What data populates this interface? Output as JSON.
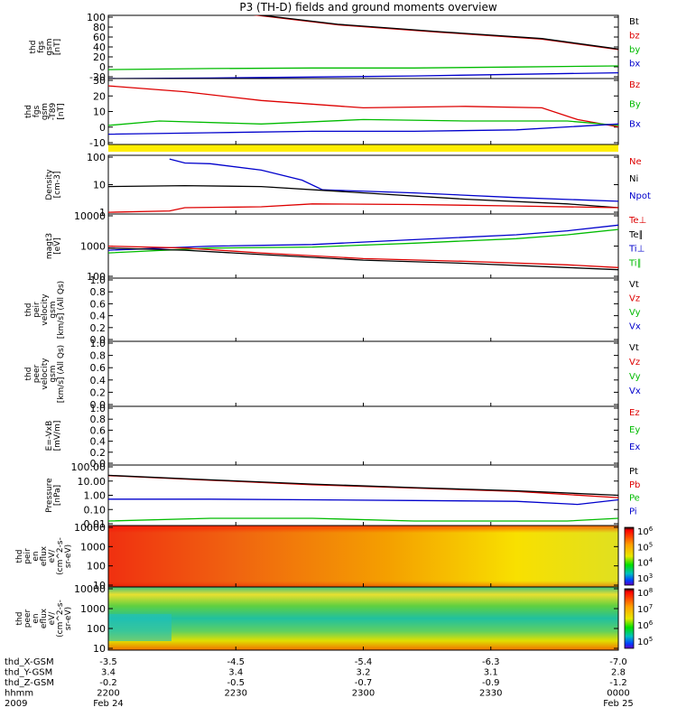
{
  "chart_data": {
    "type": "multi-panel",
    "title": "P3 (TH-D) fields and ground moments overview",
    "time_axis": {
      "labels": [
        "thd_X-GSM",
        "thd_Y-GSM",
        "thd_Z-GSM",
        "hhmm",
        "2009"
      ],
      "ticks": [
        {
          "x": "-3.5",
          "y": "3.4",
          "z": "-0.2",
          "hhmm": "2200",
          "date": "Feb 24"
        },
        {
          "x": "-4.5",
          "y": "3.4",
          "z": "-0.5",
          "hhmm": "2230",
          "date": ""
        },
        {
          "x": "-5.4",
          "y": "3.2",
          "z": "-0.7",
          "hhmm": "2300",
          "date": ""
        },
        {
          "x": "-6.3",
          "y": "3.1",
          "z": "-0.9",
          "hhmm": "2330",
          "date": ""
        },
        {
          "x": "-7.0",
          "y": "2.8",
          "z": "-1.2",
          "hhmm": "0000",
          "date": "Feb 25"
        }
      ]
    },
    "panels": [
      {
        "ylabel": [
          "thd",
          "fgs",
          "gsm",
          "[nT]"
        ],
        "ylim": [
          -20,
          100
        ],
        "yticks": [
          "100",
          "80",
          "60",
          "40",
          "20",
          "0",
          "-20"
        ],
        "legend": [
          {
            "label": "Bt",
            "color": "#000000"
          },
          {
            "label": "bz",
            "color": "#dd0000"
          },
          {
            "label": "by",
            "color": "#00bb00"
          },
          {
            "label": "bx",
            "color": "#0000cc"
          }
        ],
        "series": [
          {
            "name": "bz",
            "color": "#dd0000",
            "x": [
              0.05,
              0.25,
              0.45,
              0.65,
              0.85,
              1.0
            ],
            "y": [
              190,
              105,
              82,
              68,
              55,
              35
            ]
          },
          {
            "name": "Bt",
            "color": "#000000",
            "x": [
              0.05,
              0.25,
              0.45,
              0.65,
              0.85,
              1.0
            ],
            "y": [
              191,
              106,
              83,
              69,
              56,
              36
            ]
          },
          {
            "name": "by",
            "color": "#00bb00",
            "x": [
              0,
              0.2,
              0.4,
              0.6,
              0.8,
              1.0
            ],
            "y": [
              -3,
              -1,
              0,
              0,
              2,
              4
            ]
          },
          {
            "name": "bx",
            "color": "#0000cc",
            "x": [
              0,
              0.2,
              0.4,
              0.6,
              0.8,
              1.0
            ],
            "y": [
              -20,
              -19,
              -17,
              -15,
              -12,
              -9
            ]
          }
        ]
      },
      {
        "ylabel": [
          "thd",
          "fgs",
          "gsm",
          "-T89",
          "[nT]"
        ],
        "ylim": [
          -15,
          30
        ],
        "yticks": [
          "30",
          "20",
          "10",
          "0",
          "-10"
        ],
        "legend": [
          {
            "label": "Bz",
            "color": "#dd0000"
          },
          {
            "label": "By",
            "color": "#00bb00"
          },
          {
            "label": "Bx",
            "color": "#0000cc"
          }
        ],
        "series": [
          {
            "name": "Bz",
            "color": "#dd0000",
            "x": [
              0,
              0.15,
              0.3,
              0.5,
              0.7,
              0.85,
              0.92,
              1.0
            ],
            "y": [
              25,
              21,
              15,
              10,
              11,
              10,
              2,
              -3
            ]
          },
          {
            "name": "By",
            "color": "#00bb00",
            "x": [
              0,
              0.1,
              0.3,
              0.5,
              0.7,
              0.9,
              1.0
            ],
            "y": [
              -2,
              1,
              -1,
              2,
              1,
              1,
              -2
            ]
          },
          {
            "name": "Bx",
            "color": "#0000cc",
            "x": [
              0,
              0.2,
              0.4,
              0.6,
              0.8,
              1.0
            ],
            "y": [
              -8,
              -7,
              -6,
              -6,
              -5,
              -1
            ]
          }
        ]
      },
      {
        "ylabel": [
          "Density",
          "[cm-3]"
        ],
        "scale": "log",
        "ylim": [
          0.5,
          300
        ],
        "yticks": [
          "100",
          "10",
          "1"
        ],
        "legend": [
          {
            "label": "Ne",
            "color": "#dd0000"
          },
          {
            "label": "Ni",
            "color": "#000000"
          },
          {
            "label": "Npot",
            "color": "#0000cc"
          }
        ],
        "series": [
          {
            "name": "Npot",
            "color": "#0000cc",
            "x": [
              0.12,
              0.15,
              0.2,
              0.3,
              0.38,
              0.42,
              0.6,
              0.8,
              1.0
            ],
            "y": [
              200,
              130,
              120,
              60,
              20,
              7,
              5,
              3,
              2
            ]
          },
          {
            "name": "Ni",
            "color": "#000000",
            "x": [
              0,
              0.15,
              0.3,
              0.5,
              0.7,
              0.9,
              1.0
            ],
            "y": [
              10,
              11,
              10,
              5,
              2.5,
              1.5,
              1
            ]
          },
          {
            "name": "Ne",
            "color": "#dd0000",
            "x": [
              0,
              0.12,
              0.15,
              0.3,
              0.4,
              0.6,
              0.8,
              1.0
            ],
            "y": [
              0.6,
              0.7,
              1,
              1.1,
              1.5,
              1.4,
              1.2,
              1
            ]
          }
        ]
      },
      {
        "ylabel": [
          "magt3",
          "[eV]"
        ],
        "scale": "log",
        "ylim": [
          50,
          10000
        ],
        "yticks": [
          "10000",
          "1000",
          "100"
        ],
        "legend": [
          {
            "label": "Te⊥",
            "color": "#dd0000"
          },
          {
            "label": "Te∥",
            "color": "#000000"
          },
          {
            "label": "Ti⊥",
            "color": "#0000cc"
          },
          {
            "label": "Ti∥",
            "color": "#00bb00"
          }
        ],
        "series": [
          {
            "name": "Ti⊥",
            "color": "#0000cc",
            "x": [
              0,
              0.2,
              0.4,
              0.6,
              0.8,
              0.9,
              1.0
            ],
            "y": [
              500,
              700,
              800,
              1200,
              1800,
              2500,
              4000
            ]
          },
          {
            "name": "Ti∥",
            "color": "#00bb00",
            "x": [
              0,
              0.2,
              0.4,
              0.6,
              0.8,
              0.9,
              1.0
            ],
            "y": [
              400,
              600,
              650,
              900,
              1300,
              1800,
              2800
            ]
          },
          {
            "name": "Te⊥",
            "color": "#dd0000",
            "x": [
              0,
              0.15,
              0.3,
              0.5,
              0.7,
              0.9,
              1.0
            ],
            "y": [
              700,
              600,
              400,
              250,
              200,
              150,
              120
            ]
          },
          {
            "name": "Te∥",
            "color": "#000000",
            "x": [
              0,
              0.15,
              0.3,
              0.5,
              0.7,
              0.9,
              1.0
            ],
            "y": [
              600,
              500,
              350,
              220,
              170,
              120,
              100
            ]
          }
        ]
      },
      {
        "ylabel": [
          "thd",
          "peir",
          "velocity",
          "gsm",
          "[km/s] (All Qs)"
        ],
        "ylim": [
          0,
          1
        ],
        "yticks": [
          "1.0",
          "0.8",
          "0.6",
          "0.4",
          "0.2",
          "0.0"
        ],
        "legend": [
          {
            "label": "Vt",
            "color": "#000000"
          },
          {
            "label": "Vz",
            "color": "#dd0000"
          },
          {
            "label": "Vy",
            "color": "#00bb00"
          },
          {
            "label": "Vx",
            "color": "#0000cc"
          }
        ],
        "series": []
      },
      {
        "ylabel": [
          "thd",
          "peer",
          "velocity",
          "gsm",
          "[km/s] (All Qs)"
        ],
        "ylim": [
          0,
          1
        ],
        "yticks": [
          "1.0",
          "0.8",
          "0.6",
          "0.4",
          "0.2",
          "0.0"
        ],
        "legend": [
          {
            "label": "Vt",
            "color": "#000000"
          },
          {
            "label": "Vz",
            "color": "#dd0000"
          },
          {
            "label": "Vy",
            "color": "#00bb00"
          },
          {
            "label": "Vx",
            "color": "#0000cc"
          }
        ],
        "series": []
      },
      {
        "ylabel": [
          "E=-VxB",
          "[mV/m]"
        ],
        "ylim": [
          0,
          1
        ],
        "yticks": [
          "1.0",
          "0.8",
          "0.6",
          "0.4",
          "0.2",
          "0.0"
        ],
        "legend": [
          {
            "label": "Ez",
            "color": "#dd0000"
          },
          {
            "label": "Ey",
            "color": "#00bb00"
          },
          {
            "label": "Ex",
            "color": "#0000cc"
          }
        ],
        "series": []
      },
      {
        "ylabel": [
          "Pressure",
          "[nPa]"
        ],
        "scale": "log",
        "ylim": [
          0.01,
          100
        ],
        "yticks": [
          "100.00",
          "10.00",
          "1.00",
          "0.10",
          "0.01"
        ],
        "legend": [
          {
            "label": "Pt",
            "color": "#000000"
          },
          {
            "label": "Pb",
            "color": "#dd0000"
          },
          {
            "label": "Pe",
            "color": "#00bb00"
          },
          {
            "label": "Pi",
            "color": "#0000cc"
          }
        ],
        "series": [
          {
            "name": "Pb",
            "color": "#dd0000",
            "x": [
              0,
              0.2,
              0.4,
              0.6,
              0.8,
              1.0
            ],
            "y": [
              20,
              10,
              5,
              3,
              1.8,
              0.7
            ]
          },
          {
            "name": "Pt",
            "color": "#000000",
            "x": [
              0,
              0.2,
              0.4,
              0.6,
              0.8,
              1.0
            ],
            "y": [
              21,
              10.5,
              5.5,
              3.2,
              2,
              1
            ]
          },
          {
            "name": "Pi",
            "color": "#0000cc",
            "x": [
              0,
              0.2,
              0.4,
              0.6,
              0.8,
              0.92,
              1.0
            ],
            "y": [
              0.55,
              0.55,
              0.5,
              0.45,
              0.4,
              0.25,
              0.5
            ]
          },
          {
            "name": "Pe",
            "color": "#00bb00",
            "x": [
              0,
              0.2,
              0.4,
              0.6,
              0.8,
              0.9,
              1.0
            ],
            "y": [
              0.02,
              0.03,
              0.03,
              0.02,
              0.02,
              0.02,
              0.03
            ]
          }
        ]
      },
      {
        "ylabel": [
          "thd",
          "peir",
          "en",
          "eflux",
          "eV/",
          "(cm^2-s-",
          "sr-eV)"
        ],
        "type": "heatmap",
        "yticks": [
          "10000",
          "1000",
          "100",
          "10"
        ],
        "colorbar": [
          "10^6",
          "10^5",
          "10^4",
          "10^3"
        ]
      },
      {
        "ylabel": [
          "thd",
          "peer",
          "en",
          "eflux",
          "eV/",
          "(cm^2-s-",
          "sr-eV)"
        ],
        "type": "heatmap",
        "yticks": [
          "10000",
          "1000",
          "100",
          "10"
        ],
        "colorbar": [
          "10^8",
          "10^7",
          "10^6",
          "10^5"
        ]
      }
    ]
  }
}
